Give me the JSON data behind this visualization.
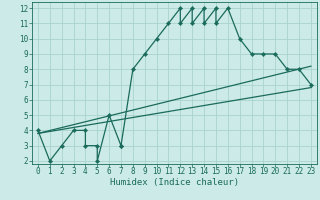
{
  "xlabel": "Humidex (Indice chaleur)",
  "bg_color": "#cceae7",
  "grid_color": "#aad4cf",
  "line_color": "#1a6b5c",
  "xlim": [
    -0.5,
    23.5
  ],
  "ylim": [
    1.8,
    12.4
  ],
  "xticks": [
    0,
    1,
    2,
    3,
    4,
    5,
    6,
    7,
    8,
    9,
    10,
    11,
    12,
    13,
    14,
    15,
    16,
    17,
    18,
    19,
    20,
    21,
    22,
    23
  ],
  "yticks": [
    2,
    3,
    4,
    5,
    6,
    7,
    8,
    9,
    10,
    11,
    12
  ],
  "main_x": [
    0,
    1,
    2,
    3,
    4,
    4,
    5,
    5,
    6,
    7,
    7,
    8,
    9,
    10,
    11,
    12,
    12,
    13,
    13,
    14,
    14,
    15,
    15,
    16,
    17,
    18,
    19,
    20,
    21,
    22,
    23
  ],
  "main_y": [
    4,
    2,
    3,
    4,
    4,
    3,
    3,
    2,
    5,
    3,
    3,
    8,
    9,
    10,
    11,
    12,
    11,
    12,
    11,
    12,
    11,
    12,
    11,
    12,
    10,
    9,
    9,
    9,
    8,
    8,
    7
  ],
  "line1_x": [
    0,
    23
  ],
  "line1_y": [
    3.8,
    8.2
  ],
  "line2_x": [
    0,
    23
  ],
  "line2_y": [
    3.8,
    6.8
  ],
  "marker": "D",
  "markersize": 2.2,
  "linewidth": 0.9,
  "tick_fontsize": 5.5,
  "xlabel_fontsize": 6.5
}
